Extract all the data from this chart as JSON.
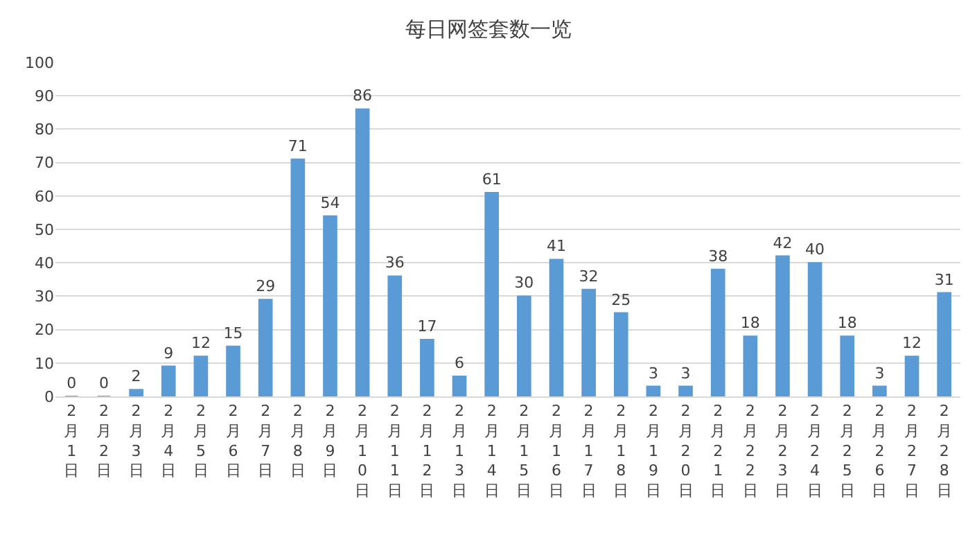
{
  "chart_data": {
    "type": "bar",
    "title": "每日网签套数一览",
    "categories": [
      "2月1日",
      "2月2日",
      "2月3日",
      "2月4日",
      "2月5日",
      "2月6日",
      "2月7日",
      "2月8日",
      "2月9日",
      "2月10日",
      "2月11日",
      "2月12日",
      "2月13日",
      "2月14日",
      "2月15日",
      "2月16日",
      "2月17日",
      "2月18日",
      "2月19日",
      "2月20日",
      "2月21日",
      "2月22日",
      "2月23日",
      "2月24日",
      "2月25日",
      "2月26日",
      "2月27日",
      "2月28日"
    ],
    "values": [
      0,
      0,
      2,
      9,
      12,
      15,
      29,
      71,
      54,
      86,
      36,
      17,
      6,
      61,
      30,
      41,
      32,
      25,
      3,
      3,
      38,
      18,
      42,
      40,
      18,
      3,
      12,
      31
    ],
    "color": "#5b9bd5",
    "ylim": [
      0,
      100
    ],
    "yticks": [
      0,
      10,
      20,
      30,
      40,
      50,
      60,
      70,
      80,
      90,
      100
    ],
    "grid": "y",
    "data_labels": true
  }
}
